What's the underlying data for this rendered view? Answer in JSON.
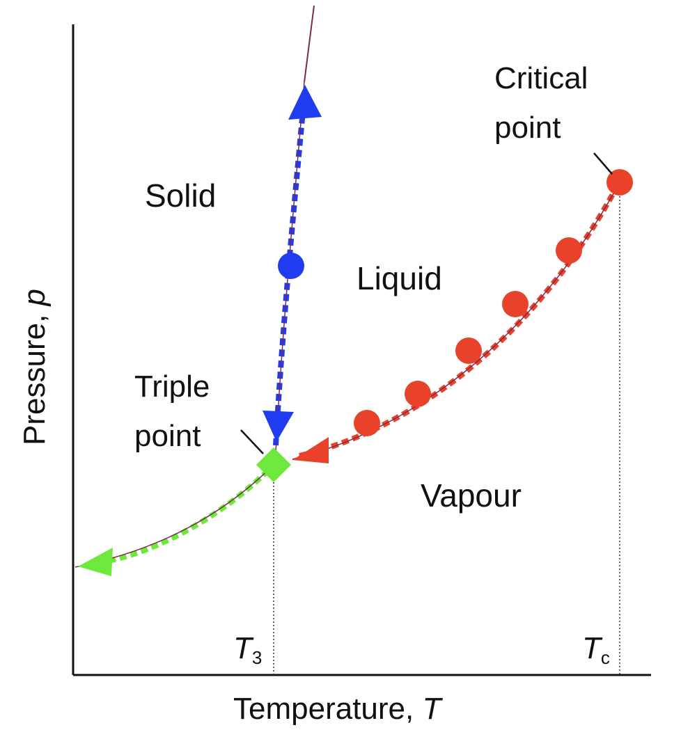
{
  "diagram": {
    "regions": {
      "solid": "Solid",
      "liquid": "Liquid",
      "vapour": "Vapour"
    },
    "annotations": {
      "critical_point_line1": "Critical",
      "critical_point_line2": "point",
      "triple_point_line1": "Triple",
      "triple_point_line2": "point"
    },
    "axes": {
      "x_label": "Temperature,",
      "x_symbol": "T",
      "y_label": "Pressure,",
      "y_symbol": "p"
    },
    "ticks": {
      "t3_symbol": "T",
      "t3_subscript": "3",
      "tc_symbol": "T",
      "tc_subscript": "c"
    },
    "colors": {
      "solid_liquid_boundary": "#1f3cf0",
      "liquid_vapour_boundary": "#e8432a",
      "solid_vapour_boundary": "#6ee83a",
      "boundary_core": "#7a2a4a",
      "axis": "#111111"
    }
  }
}
